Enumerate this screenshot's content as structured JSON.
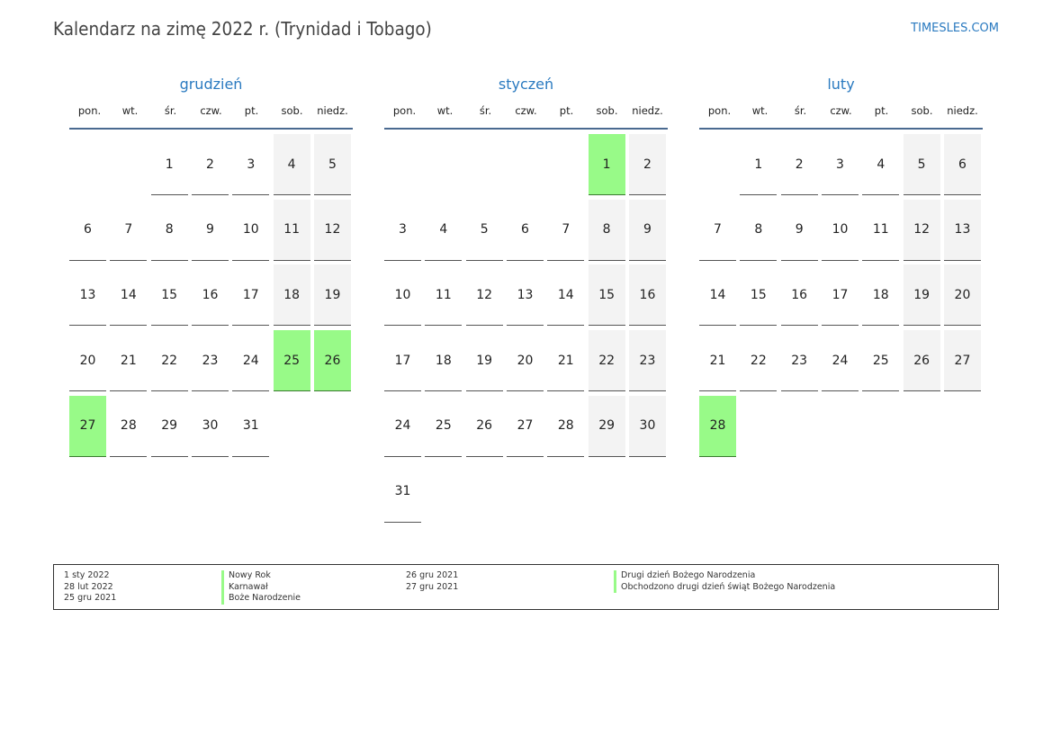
{
  "title": "Kalendarz na zimę 2022 r. (Trynidad i Tobago)",
  "brand": "TIMESLES.COM",
  "weekdays": [
    "pon.",
    "wt.",
    "śr.",
    "czw.",
    "pt.",
    "sob.",
    "niedz."
  ],
  "colors": {
    "holiday": "#98fa88",
    "weekend": "#f3f3f3",
    "accent": "#2a7ac0"
  },
  "months": [
    {
      "name": "grudzień",
      "first_weekday": 2,
      "days": 31,
      "holidays": [
        25,
        26,
        27
      ]
    },
    {
      "name": "styczeń",
      "first_weekday": 5,
      "days": 31,
      "holidays": [
        1
      ]
    },
    {
      "name": "luty",
      "first_weekday": 1,
      "days": 28,
      "holidays": [
        28
      ]
    }
  ],
  "legend": {
    "left": [
      {
        "date": "1 sty 2022",
        "name": "Nowy Rok"
      },
      {
        "date": "28 lut 2022",
        "name": "Karnawał"
      },
      {
        "date": "25 gru 2021",
        "name": "Boże Narodzenie"
      }
    ],
    "right": [
      {
        "date": "26 gru 2021",
        "name": "Drugi dzień Bożego Narodzenia"
      },
      {
        "date": "27 gru 2021",
        "name": "Obchodzono drugi dzień świąt Bożego Narodzenia"
      }
    ]
  }
}
